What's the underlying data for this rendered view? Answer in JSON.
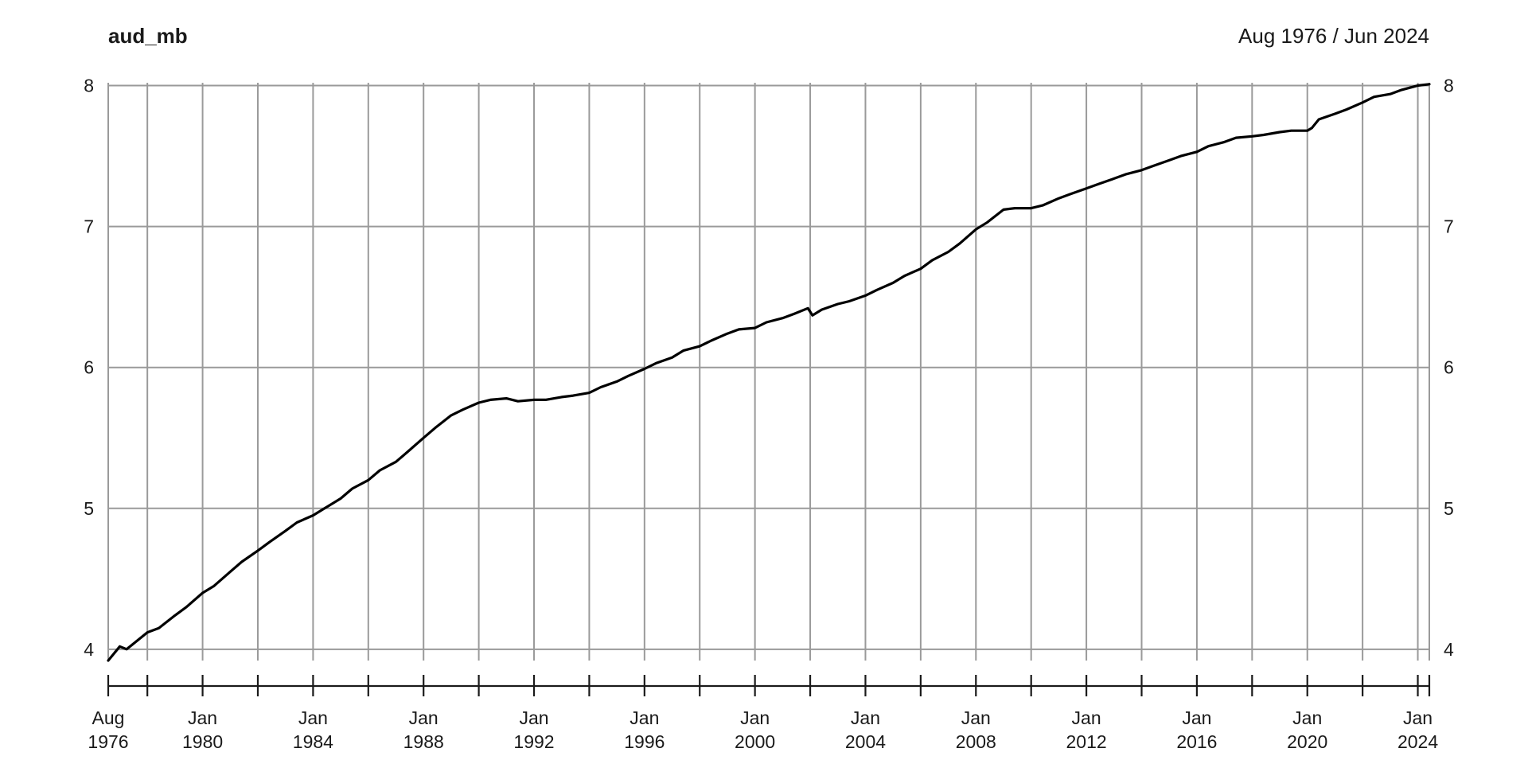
{
  "chart_data": {
    "type": "line",
    "title": "aud_mb",
    "date_range_label": "Aug 1976 / Jun 2024",
    "xlabel": "",
    "ylabel": "",
    "x_range": [
      "1976-08",
      "2024-06"
    ],
    "ylim": [
      3.92,
      8.02
    ],
    "y_ticks": [
      4,
      5,
      6,
      7,
      8
    ],
    "y_tick_labels": [
      "4",
      "5",
      "6",
      "7",
      "8"
    ],
    "x_grid_dates": [
      "1976-08",
      "1978-01",
      "1980-01",
      "1982-01",
      "1984-01",
      "1986-01",
      "1988-01",
      "1990-01",
      "1992-01",
      "1994-01",
      "1996-01",
      "1998-01",
      "2000-01",
      "2002-01",
      "2004-01",
      "2006-01",
      "2008-01",
      "2010-01",
      "2012-01",
      "2014-01",
      "2016-01",
      "2018-01",
      "2020-01",
      "2022-01",
      "2024-01",
      "2024-06"
    ],
    "x_tick_labels": [
      {
        "date": "1976-08",
        "line1": "Aug",
        "line2": "1976"
      },
      {
        "date": "1980-01",
        "line1": "Jan",
        "line2": "1980"
      },
      {
        "date": "1984-01",
        "line1": "Jan",
        "line2": "1984"
      },
      {
        "date": "1988-01",
        "line1": "Jan",
        "line2": "1988"
      },
      {
        "date": "1992-01",
        "line1": "Jan",
        "line2": "1992"
      },
      {
        "date": "1996-01",
        "line1": "Jan",
        "line2": "1996"
      },
      {
        "date": "2000-01",
        "line1": "Jan",
        "line2": "2000"
      },
      {
        "date": "2004-01",
        "line1": "Jan",
        "line2": "2004"
      },
      {
        "date": "2008-01",
        "line1": "Jan",
        "line2": "2008"
      },
      {
        "date": "2012-01",
        "line1": "Jan",
        "line2": "2012"
      },
      {
        "date": "2016-01",
        "line1": "Jan",
        "line2": "2016"
      },
      {
        "date": "2020-01",
        "line1": "Jan",
        "line2": "2020"
      },
      {
        "date": "2024-01",
        "line1": "Jan",
        "line2": "2024"
      }
    ],
    "grid": true,
    "legend": "none",
    "line_color": "#000000",
    "grid_color": "#9a9a9a",
    "series": [
      {
        "x": [
          "1976-08",
          "1977-01",
          "1977-04",
          "1977-07",
          "1978-01",
          "1978-06",
          "1979-01",
          "1979-06",
          "1980-01",
          "1980-06",
          "1981-01",
          "1981-06",
          "1982-01",
          "1982-06",
          "1983-01",
          "1983-06",
          "1984-01",
          "1984-06",
          "1985-01",
          "1985-06",
          "1986-01",
          "1986-06",
          "1987-01",
          "1987-06",
          "1988-01",
          "1988-06",
          "1989-01",
          "1989-06",
          "1990-01",
          "1990-06",
          "1991-01",
          "1991-06",
          "1992-01",
          "1992-06",
          "1993-01",
          "1993-06",
          "1994-01",
          "1994-06",
          "1995-01",
          "1995-06",
          "1996-01",
          "1996-06",
          "1997-01",
          "1997-06",
          "1998-01",
          "1998-06",
          "1999-01",
          "1999-06",
          "2000-01",
          "2000-06",
          "2001-01",
          "2001-06",
          "2001-12",
          "2002-02",
          "2002-06",
          "2003-01",
          "2003-06",
          "2004-01",
          "2004-06",
          "2005-01",
          "2005-06",
          "2006-01",
          "2006-06",
          "2007-01",
          "2007-06",
          "2008-01",
          "2008-06",
          "2009-01",
          "2009-06",
          "2010-01",
          "2010-06",
          "2011-01",
          "2011-06",
          "2012-01",
          "2012-06",
          "2013-01",
          "2013-06",
          "2014-01",
          "2014-06",
          "2015-01",
          "2015-06",
          "2016-01",
          "2016-06",
          "2017-01",
          "2017-06",
          "2018-01",
          "2018-06",
          "2019-01",
          "2019-06",
          "2020-01",
          "2020-03",
          "2020-06",
          "2021-01",
          "2021-06",
          "2022-01",
          "2022-06",
          "2023-01",
          "2023-06",
          "2024-01",
          "2024-06"
        ],
        "y": [
          3.92,
          4.02,
          4.0,
          4.04,
          4.12,
          4.15,
          4.24,
          4.3,
          4.4,
          4.45,
          4.55,
          4.62,
          4.7,
          4.76,
          4.84,
          4.9,
          4.95,
          5.0,
          5.07,
          5.14,
          5.2,
          5.27,
          5.33,
          5.4,
          5.5,
          5.57,
          5.66,
          5.7,
          5.75,
          5.77,
          5.78,
          5.76,
          5.77,
          5.77,
          5.79,
          5.8,
          5.82,
          5.86,
          5.9,
          5.94,
          5.99,
          6.03,
          6.07,
          6.12,
          6.15,
          6.19,
          6.24,
          6.27,
          6.28,
          6.32,
          6.35,
          6.38,
          6.42,
          6.37,
          6.41,
          6.45,
          6.47,
          6.51,
          6.55,
          6.6,
          6.65,
          6.7,
          6.76,
          6.82,
          6.88,
          6.98,
          7.03,
          7.12,
          7.13,
          7.13,
          7.15,
          7.2,
          7.23,
          7.27,
          7.3,
          7.34,
          7.37,
          7.4,
          7.43,
          7.47,
          7.5,
          7.53,
          7.57,
          7.6,
          7.63,
          7.64,
          7.65,
          7.67,
          7.68,
          7.68,
          7.7,
          7.76,
          7.8,
          7.83,
          7.88,
          7.92,
          7.94,
          7.97,
          8.0,
          8.01
        ]
      }
    ]
  }
}
